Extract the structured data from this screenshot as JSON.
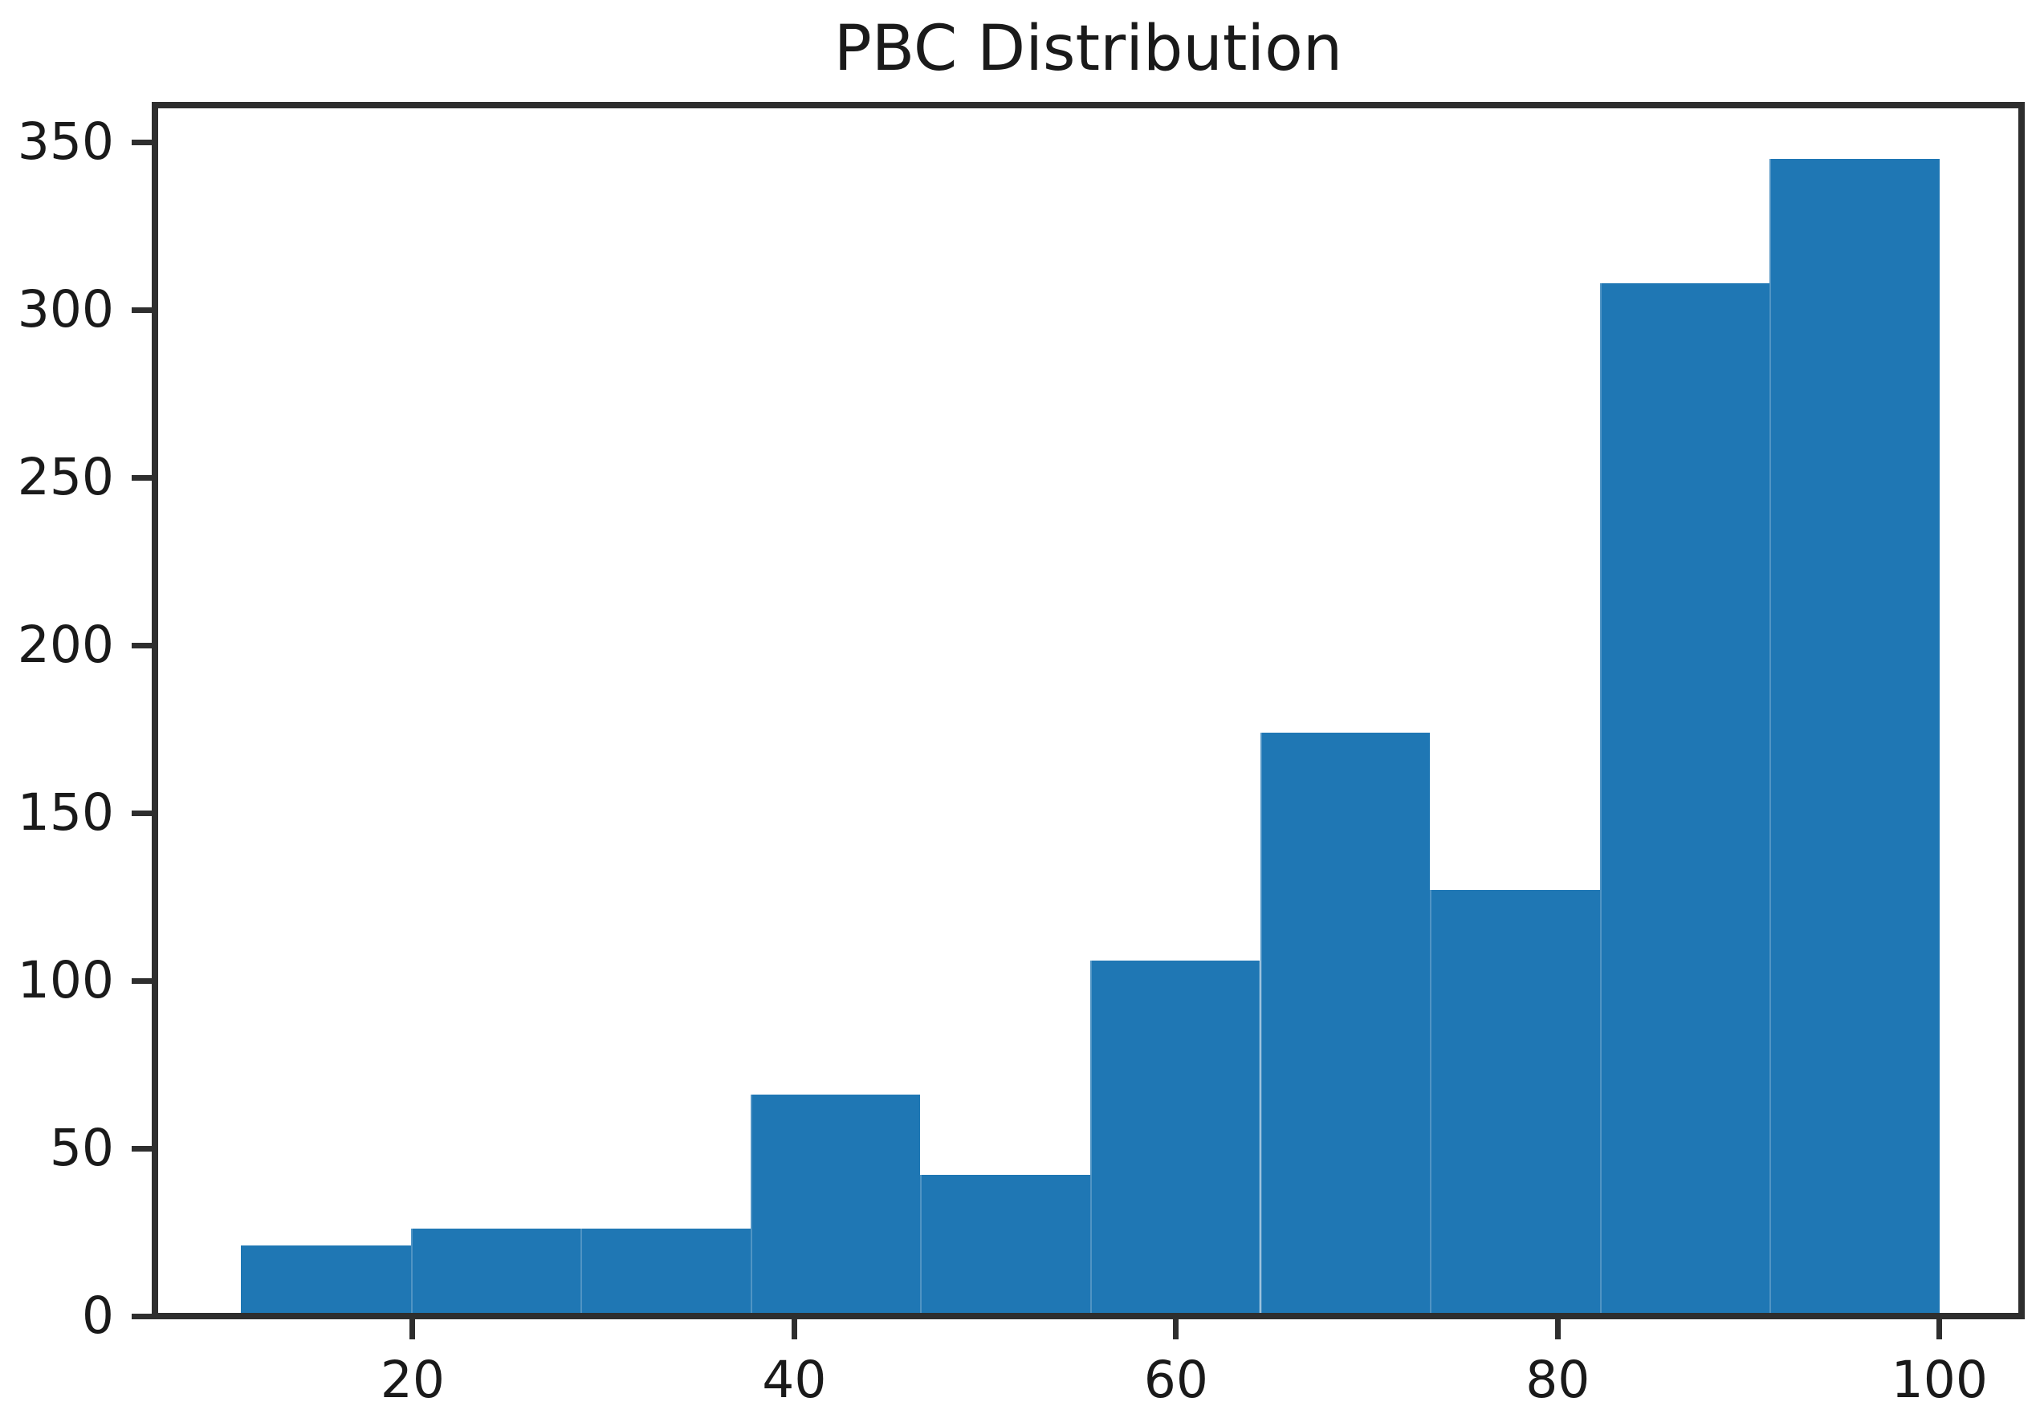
{
  "figure": {
    "background_color": "#ffffff",
    "text_color": "#1a1a1a",
    "spine_color": "#2e2e2e"
  },
  "chart_data": {
    "type": "bar",
    "subtype": "histogram",
    "title": "PBC Distribution",
    "xlabel": "",
    "ylabel": "",
    "bar_color": "#1f77b4",
    "grid": false,
    "legend_position": "none",
    "bin_edges": [
      11.0,
      19.9,
      28.8,
      37.7,
      46.6,
      55.5,
      64.4,
      73.3,
      82.2,
      91.1,
      100.0
    ],
    "values": [
      21,
      26,
      26,
      66,
      42,
      106,
      174,
      127,
      308,
      345
    ],
    "x_ticks": [
      20,
      40,
      60,
      80,
      100
    ],
    "y_ticks": [
      0,
      50,
      100,
      150,
      200,
      250,
      300,
      350
    ],
    "xlim": [
      6.5,
      104.3
    ],
    "ylim": [
      0,
      361
    ]
  }
}
